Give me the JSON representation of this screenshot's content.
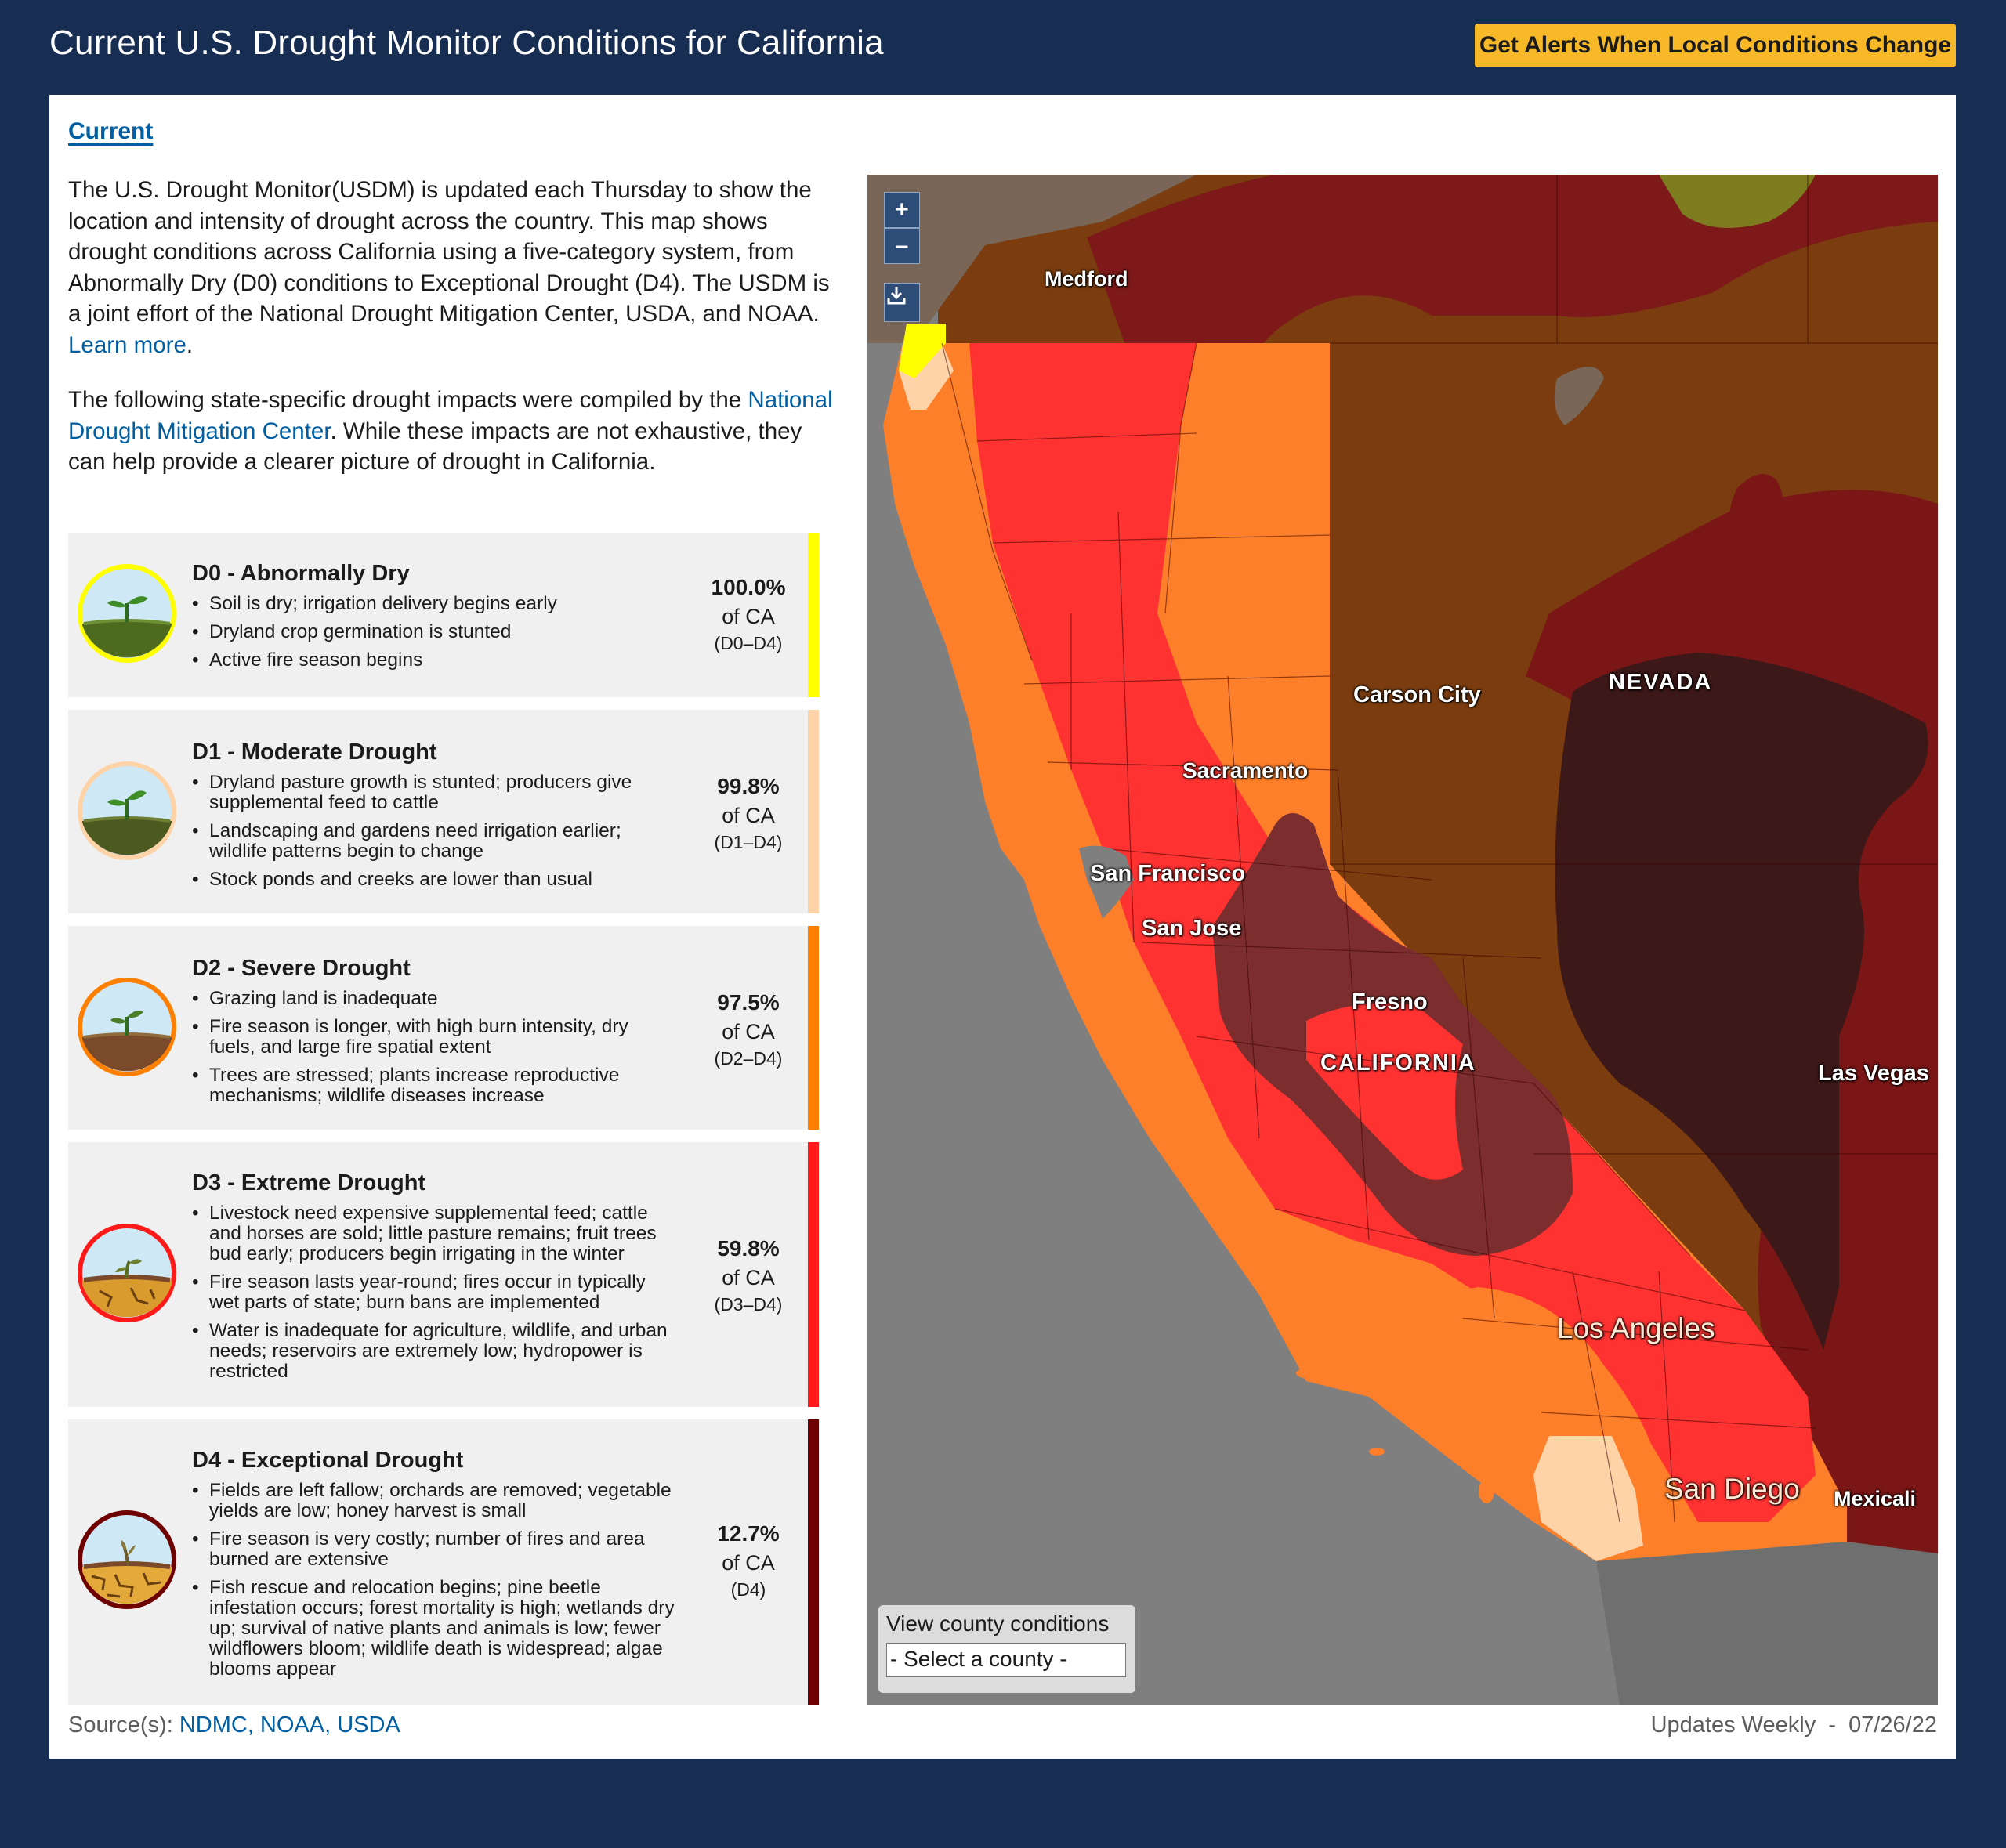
{
  "header": {
    "title": "Current U.S. Drought Monitor Conditions for California",
    "alert_button": "Get Alerts When Local Conditions Change"
  },
  "tabs": {
    "current": "Current"
  },
  "intro": {
    "text": "The U.S. Drought Monitor(USDM) is updated each Thursday to show the location and intensity of drought across the country. This map shows drought conditions across California using a five-category system, from Abnormally Dry (D0) conditions to Exceptional Drought (D4). The USDM is a joint effort of the National Drought Mitigation Center, USDA, and NOAA.",
    "learn_more": "Learn more",
    "impacts_pre": "The following state-specific drought impacts were compiled by the",
    "impacts_link": "National Drought Mitigation Center",
    "impacts_post": ". While these impacts are not exhaustive, they can help provide a clearer picture of drought in California."
  },
  "categories": [
    {
      "title": "D0 - Abnormally Dry",
      "color": "#ffff00",
      "impacts": [
        "Soil is dry; irrigation delivery begins early",
        "Dryland crop germination is stunted",
        "Active fire season begins"
      ],
      "percent": "100.0%",
      "of": "of CA",
      "range": "(D0–D4)"
    },
    {
      "title": "D1 - Moderate Drought",
      "color": "#ffd3a8",
      "impacts": [
        "Dryland pasture growth is stunted; producers give supplemental feed to cattle",
        "Landscaping and gardens need irrigation earlier; wildlife patterns begin to change",
        "Stock ponds and creeks are lower than usual"
      ],
      "percent": "99.8%",
      "of": "of CA",
      "range": "(D1–D4)"
    },
    {
      "title": "D2 - Severe Drought",
      "color": "#ff7f00",
      "impacts": [
        "Grazing land is inadequate",
        "Fire season is longer, with high burn intensity, dry fuels, and large fire spatial extent",
        "Trees are stressed; plants increase reproductive mechanisms; wildlife diseases increase"
      ],
      "percent": "97.5%",
      "of": "of CA",
      "range": "(D2–D4)"
    },
    {
      "title": "D3 - Extreme Drought",
      "color": "#ff1a1a",
      "impacts": [
        "Livestock need expensive supplemental feed; cattle and horses are sold; little pasture remains; fruit trees bud early; producers begin irrigating in the winter",
        "Fire season lasts year-round; fires occur in typically wet parts of state; burn bans are implemented",
        "Water is inadequate for agriculture, wildlife, and urban needs; reservoirs are extremely low; hydropower is restricted"
      ],
      "percent": "59.8%",
      "of": "of CA",
      "range": "(D3–D4)"
    },
    {
      "title": "D4 - Exceptional Drought",
      "color": "#6e0000",
      "impacts": [
        "Fields are left fallow; orchards are removed; vegetable yields are low; honey harvest is small",
        "Fire season is very costly; number of fires and area burned are extensive",
        "Fish rescue and relocation begins; pine beetle infestation occurs; forest mortality is high; wetlands dry up; survival of native plants and animals is low; fewer wildflowers bloom; wildlife death is widespread; algae blooms appear"
      ],
      "percent": "12.7%",
      "of": "of CA",
      "range": "(D4)"
    }
  ],
  "footer": {
    "source_label": "Source(s):",
    "sources": "NDMC, NOAA, USDA",
    "updated": "Updates Weekly  -  07/26/22"
  },
  "map": {
    "zoom_in": "+",
    "zoom_out": "–",
    "download_icon": "download-icon",
    "county_label": "View county conditions",
    "county_select": "- Select a county -",
    "labels": {
      "medford": "Medford",
      "carson_city": "Carson City",
      "nevada": "NEVADA",
      "sacramento": "Sacramento",
      "san_francisco": "San Francisco",
      "san_jose": "San Jose",
      "fresno": "Fresno",
      "california": "CALIFORNIA",
      "las_vegas": "Las Vegas",
      "los_angeles": "Los Angeles",
      "san_diego": "San Diego",
      "mexicali": "Mexicali"
    }
  }
}
